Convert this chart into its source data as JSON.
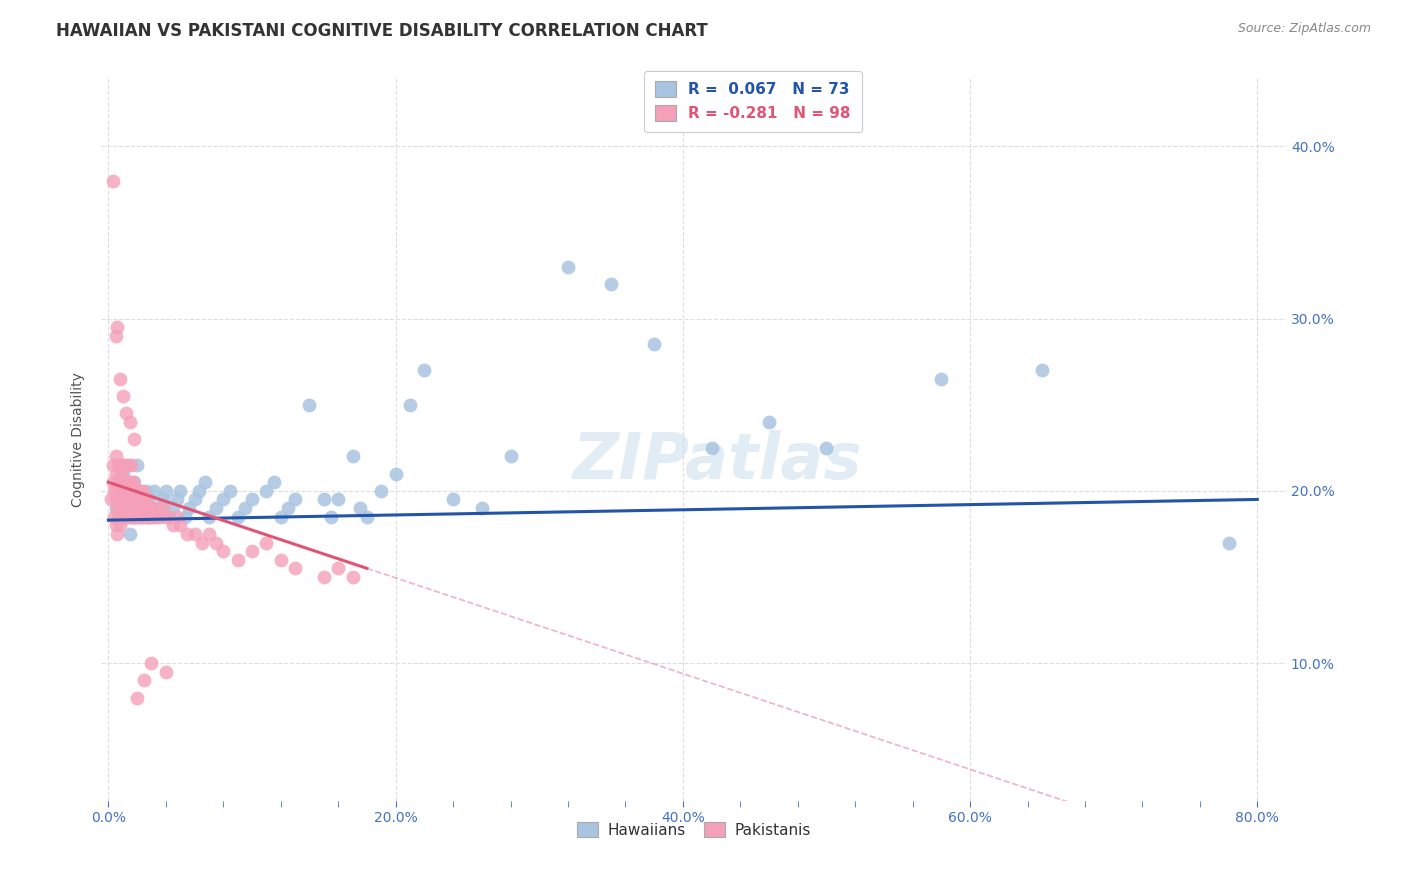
{
  "title": "HAWAIIAN VS PAKISTANI COGNITIVE DISABILITY CORRELATION CHART",
  "source": "Source: ZipAtlas.com",
  "ylabel": "Cognitive Disability",
  "xlabel_ticks": [
    "0.0%",
    "",
    "",
    "",
    "",
    "20.0%",
    "",
    "",
    "",
    "",
    "40.0%",
    "",
    "",
    "",
    "",
    "60.0%",
    "",
    "",
    "",
    "",
    "80.0%"
  ],
  "xlabel_tick_vals": [
    0.0,
    0.04,
    0.08,
    0.12,
    0.16,
    0.2,
    0.24,
    0.28,
    0.32,
    0.36,
    0.4,
    0.44,
    0.48,
    0.52,
    0.56,
    0.6,
    0.64,
    0.68,
    0.72,
    0.76,
    0.8
  ],
  "ylabel_ticks_right": [
    "40.0%",
    "30.0%",
    "20.0%",
    "10.0%"
  ],
  "ylabel_tick_vals": [
    0.4,
    0.3,
    0.2,
    0.1
  ],
  "xlim": [
    -0.005,
    0.82
  ],
  "ylim": [
    0.02,
    0.44
  ],
  "hawaiian_R": 0.067,
  "hawaiian_N": 73,
  "pakistani_R": -0.281,
  "pakistani_N": 98,
  "hawaiian_color": "#a8c4e0",
  "pakistani_color": "#f4a0b8",
  "hawaiian_line_color": "#2255aa",
  "pakistani_line_color": "#e05575",
  "grid_color": "#dddddd",
  "background_color": "#ffffff",
  "watermark": "ZIPatlas",
  "title_fontsize": 12,
  "axis_label_fontsize": 10,
  "tick_fontsize": 10,
  "hawaiian_x": [
    0.005,
    0.007,
    0.008,
    0.01,
    0.01,
    0.012,
    0.013,
    0.015,
    0.015,
    0.016,
    0.017,
    0.018,
    0.018,
    0.019,
    0.02,
    0.02,
    0.021,
    0.022,
    0.023,
    0.025,
    0.026,
    0.027,
    0.028,
    0.03,
    0.032,
    0.034,
    0.036,
    0.038,
    0.04,
    0.042,
    0.045,
    0.048,
    0.05,
    0.053,
    0.056,
    0.06,
    0.063,
    0.067,
    0.07,
    0.075,
    0.08,
    0.085,
    0.09,
    0.095,
    0.1,
    0.11,
    0.115,
    0.12,
    0.125,
    0.13,
    0.14,
    0.15,
    0.155,
    0.16,
    0.17,
    0.175,
    0.18,
    0.19,
    0.2,
    0.21,
    0.22,
    0.24,
    0.26,
    0.28,
    0.32,
    0.35,
    0.38,
    0.42,
    0.46,
    0.5,
    0.58,
    0.65,
    0.78
  ],
  "hawaiian_y": [
    0.19,
    0.195,
    0.185,
    0.2,
    0.21,
    0.195,
    0.185,
    0.2,
    0.175,
    0.185,
    0.19,
    0.195,
    0.205,
    0.185,
    0.2,
    0.215,
    0.195,
    0.19,
    0.185,
    0.195,
    0.2,
    0.185,
    0.195,
    0.19,
    0.2,
    0.185,
    0.19,
    0.195,
    0.2,
    0.185,
    0.19,
    0.195,
    0.2,
    0.185,
    0.19,
    0.195,
    0.2,
    0.205,
    0.185,
    0.19,
    0.195,
    0.2,
    0.185,
    0.19,
    0.195,
    0.2,
    0.205,
    0.185,
    0.19,
    0.195,
    0.25,
    0.195,
    0.185,
    0.195,
    0.22,
    0.19,
    0.185,
    0.2,
    0.21,
    0.25,
    0.27,
    0.195,
    0.19,
    0.22,
    0.33,
    0.32,
    0.285,
    0.225,
    0.24,
    0.225,
    0.265,
    0.27,
    0.17
  ],
  "pakistani_x": [
    0.002,
    0.003,
    0.003,
    0.004,
    0.004,
    0.005,
    0.005,
    0.005,
    0.005,
    0.006,
    0.006,
    0.006,
    0.007,
    0.007,
    0.007,
    0.007,
    0.008,
    0.008,
    0.008,
    0.008,
    0.009,
    0.009,
    0.009,
    0.009,
    0.01,
    0.01,
    0.01,
    0.01,
    0.01,
    0.011,
    0.011,
    0.011,
    0.012,
    0.012,
    0.012,
    0.012,
    0.013,
    0.013,
    0.013,
    0.014,
    0.014,
    0.014,
    0.015,
    0.015,
    0.015,
    0.016,
    0.016,
    0.016,
    0.017,
    0.017,
    0.017,
    0.018,
    0.018,
    0.018,
    0.019,
    0.019,
    0.02,
    0.02,
    0.02,
    0.021,
    0.021,
    0.022,
    0.022,
    0.023,
    0.023,
    0.024,
    0.024,
    0.025,
    0.025,
    0.026,
    0.027,
    0.027,
    0.028,
    0.03,
    0.03,
    0.032,
    0.034,
    0.036,
    0.038,
    0.04,
    0.042,
    0.045,
    0.048,
    0.05,
    0.055,
    0.06,
    0.065,
    0.07,
    0.075,
    0.08,
    0.09,
    0.1,
    0.11,
    0.12,
    0.13,
    0.15,
    0.16,
    0.17
  ],
  "pakistani_y": [
    0.195,
    0.205,
    0.215,
    0.185,
    0.2,
    0.195,
    0.21,
    0.18,
    0.22,
    0.19,
    0.2,
    0.175,
    0.195,
    0.205,
    0.185,
    0.215,
    0.195,
    0.205,
    0.215,
    0.18,
    0.19,
    0.2,
    0.185,
    0.21,
    0.195,
    0.205,
    0.185,
    0.2,
    0.215,
    0.195,
    0.19,
    0.205,
    0.185,
    0.2,
    0.215,
    0.19,
    0.195,
    0.205,
    0.185,
    0.2,
    0.215,
    0.19,
    0.195,
    0.205,
    0.185,
    0.2,
    0.215,
    0.19,
    0.195,
    0.185,
    0.205,
    0.195,
    0.2,
    0.185,
    0.195,
    0.2,
    0.195,
    0.185,
    0.2,
    0.195,
    0.19,
    0.185,
    0.2,
    0.195,
    0.19,
    0.185,
    0.2,
    0.195,
    0.19,
    0.185,
    0.195,
    0.19,
    0.185,
    0.19,
    0.185,
    0.185,
    0.19,
    0.185,
    0.19,
    0.185,
    0.185,
    0.18,
    0.185,
    0.18,
    0.175,
    0.175,
    0.17,
    0.175,
    0.17,
    0.165,
    0.16,
    0.165,
    0.17,
    0.16,
    0.155,
    0.15,
    0.155,
    0.15
  ],
  "pakistani_outlier_x": [
    0.003,
    0.005,
    0.006,
    0.008,
    0.01,
    0.012,
    0.015,
    0.018,
    0.02,
    0.025,
    0.03,
    0.04
  ],
  "pakistani_outlier_y": [
    0.38,
    0.29,
    0.295,
    0.265,
    0.255,
    0.245,
    0.24,
    0.23,
    0.08,
    0.09,
    0.1,
    0.095
  ]
}
